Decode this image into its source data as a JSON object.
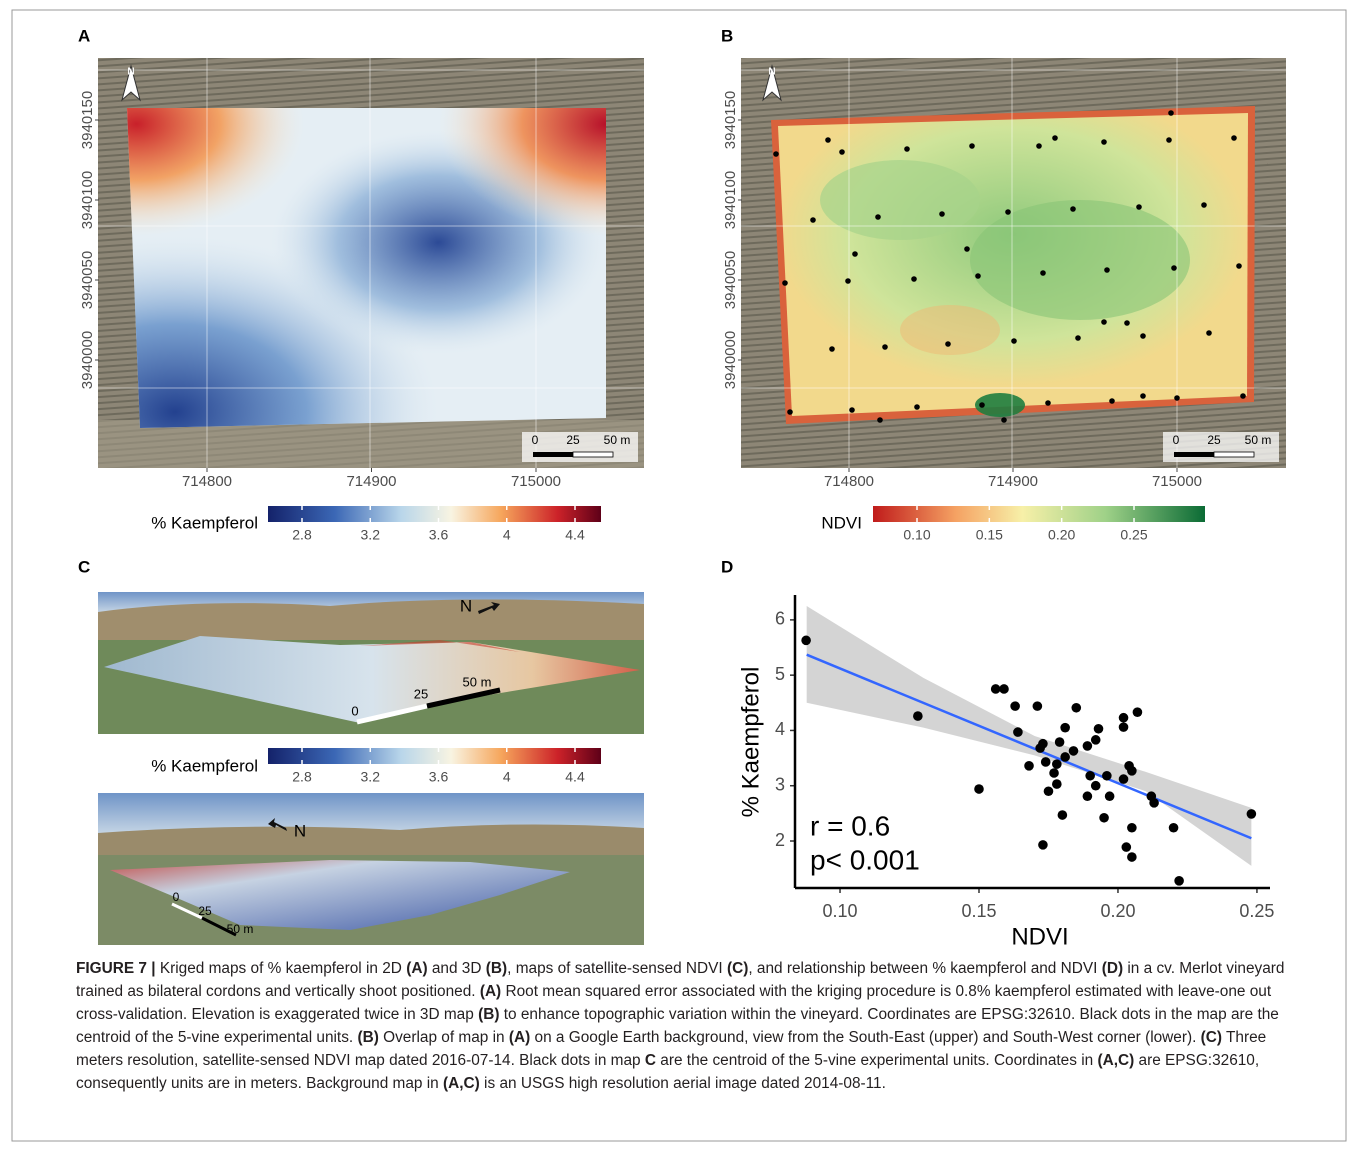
{
  "panels": {
    "top_left": {
      "label": "A",
      "north": "N",
      "yticks": [
        3940150,
        3940100,
        3940050,
        3940000
      ],
      "xticks": [
        714800,
        714900,
        715000
      ],
      "scale_bar": [
        "0",
        "25",
        "50 m"
      ],
      "legend_title": "% Kaempferol",
      "legend_ticks": [
        2.8,
        3.2,
        3.6,
        4,
        4.4
      ]
    },
    "top_right": {
      "label": "B",
      "north": "N",
      "yticks": [
        3940150,
        3940100,
        3940050,
        3940000
      ],
      "xticks": [
        714800,
        714900,
        715000
      ],
      "scale_bar": [
        "0",
        "25",
        "50 m"
      ],
      "legend_title": "NDVI",
      "legend_ticks": [
        {
          "value": 0.1,
          "label": "0.10"
        },
        0.15,
        {
          "value": 0.2,
          "label": "0.20"
        },
        0.25
      ]
    },
    "bottom_left": {
      "label": "C",
      "north_upper": "N",
      "scale_upper": [
        "0",
        "25",
        "50 m"
      ],
      "north_lower": "N",
      "scale_lower": [
        "0",
        "25",
        "50 m"
      ],
      "legend_title": "% Kaempferol",
      "legend_ticks": [
        2.8,
        3.2,
        3.6,
        4,
        4.4
      ]
    },
    "bottom_right": {
      "label": "D"
    }
  },
  "chart_data": {
    "type": "scatter",
    "x_label": "NDVI",
    "y_label": "% Kaempferol",
    "annotations": [
      "r = 0.6",
      "p< 0.001"
    ],
    "xlim": [
      0.0838,
      0.2547
    ],
    "ylim": [
      1.15,
      6.45
    ],
    "xticks": [
      {
        "value": 0.1,
        "label": "0.10"
      },
      0.15,
      {
        "value": 0.2,
        "label": "0.20"
      },
      0.25
    ],
    "yticks": [
      2,
      3,
      4,
      5,
      6
    ],
    "color": "#000000",
    "fit_color": "#3366ff",
    "band_color": "#bdbdbd",
    "x": [
      0.0878,
      0.128,
      0.15,
      0.156,
      0.159,
      0.163,
      0.164,
      0.168,
      0.171,
      0.172,
      0.173,
      0.173,
      0.174,
      0.175,
      0.177,
      0.178,
      0.178,
      0.179,
      0.18,
      0.181,
      0.181,
      0.184,
      0.185,
      0.189,
      0.189,
      0.19,
      0.192,
      0.193,
      0.192,
      0.195,
      0.196,
      0.197,
      0.202,
      0.202,
      0.202,
      0.203,
      0.204,
      0.205,
      0.205,
      0.205,
      0.207,
      0.212,
      0.213,
      0.22,
      0.222,
      0.248
    ],
    "values": [
      5.63,
      4.26,
      2.94,
      4.75,
      4.75,
      4.44,
      3.97,
      3.36,
      4.44,
      3.68,
      1.93,
      3.76,
      3.43,
      2.9,
      3.23,
      3.03,
      3.39,
      3.79,
      2.47,
      3.52,
      4.05,
      3.63,
      4.41,
      3.72,
      2.81,
      3.18,
      3.83,
      4.03,
      3.0,
      2.42,
      3.18,
      2.81,
      4.23,
      3.12,
      4.06,
      1.89,
      3.36,
      2.24,
      1.71,
      3.27,
      4.33,
      2.81,
      2.69,
      2.24,
      1.28,
      2.49
    ],
    "fit": {
      "x": [
        0.088,
        0.248
      ],
      "y": [
        5.37,
        2.05
      ]
    },
    "band": {
      "x": [
        0.088,
        0.13,
        0.17,
        0.21,
        0.248
      ],
      "upper": [
        6.25,
        4.95,
        3.9,
        3.25,
        2.6
      ],
      "lower": [
        4.5,
        4.05,
        3.55,
        2.9,
        1.55
      ]
    }
  },
  "caption": [
    {
      "text": "FIGURE 7 |",
      "bold": true
    },
    {
      "text": " Kriged maps of % kaempferol in 2D ",
      "bold": false
    },
    {
      "text": "(A)",
      "bold": true
    },
    {
      "text": " and 3D ",
      "bold": false
    },
    {
      "text": "(B)",
      "bold": true
    },
    {
      "text": ", maps of satellite-sensed NDVI ",
      "bold": false
    },
    {
      "text": "(C)",
      "bold": true
    },
    {
      "text": ", and relationship between % kaempferol and NDVI ",
      "bold": false
    },
    {
      "text": "(D)",
      "bold": true
    },
    {
      "text": " in a cv. Merlot vineyard trained as bilateral cordons and vertically shoot positioned. ",
      "bold": false
    },
    {
      "text": "(A)",
      "bold": true
    },
    {
      "text": " Root mean squared error associated with the kriging procedure is 0.8% kaempferol estimated with leave-one out cross-validation. Elevation is exaggerated twice in 3D map ",
      "bold": false
    },
    {
      "text": "(B)",
      "bold": true
    },
    {
      "text": " to enhance topographic variation within the vineyard. Coordinates are EPSG:32610. Black dots in the map are the centroid of the 5-vine experimental units. ",
      "bold": false
    },
    {
      "text": "(B)",
      "bold": true
    },
    {
      "text": " Overlap of map in ",
      "bold": false
    },
    {
      "text": "(A)",
      "bold": true
    },
    {
      "text": " on a Google Earth background, view from the South-East (upper) and South-West corner (lower). ",
      "bold": false
    },
    {
      "text": "(C)",
      "bold": true
    },
    {
      "text": " Three meters resolution, satellite-sensed NDVI map dated 2016-07-14. Black dots in map ",
      "bold": false
    },
    {
      "text": "C",
      "bold": true
    },
    {
      "text": " are the centroid of the 5-vine experimental units. Coordinates in ",
      "bold": false
    },
    {
      "text": "(A,C)",
      "bold": true
    },
    {
      "text": " are EPSG:32610, consequently units are in meters. Background map in ",
      "bold": false
    },
    {
      "text": "(A,C)",
      "bold": true
    },
    {
      "text": " is an USGS high resolution aerial image dated 2014-08-11.",
      "bold": false
    }
  ]
}
